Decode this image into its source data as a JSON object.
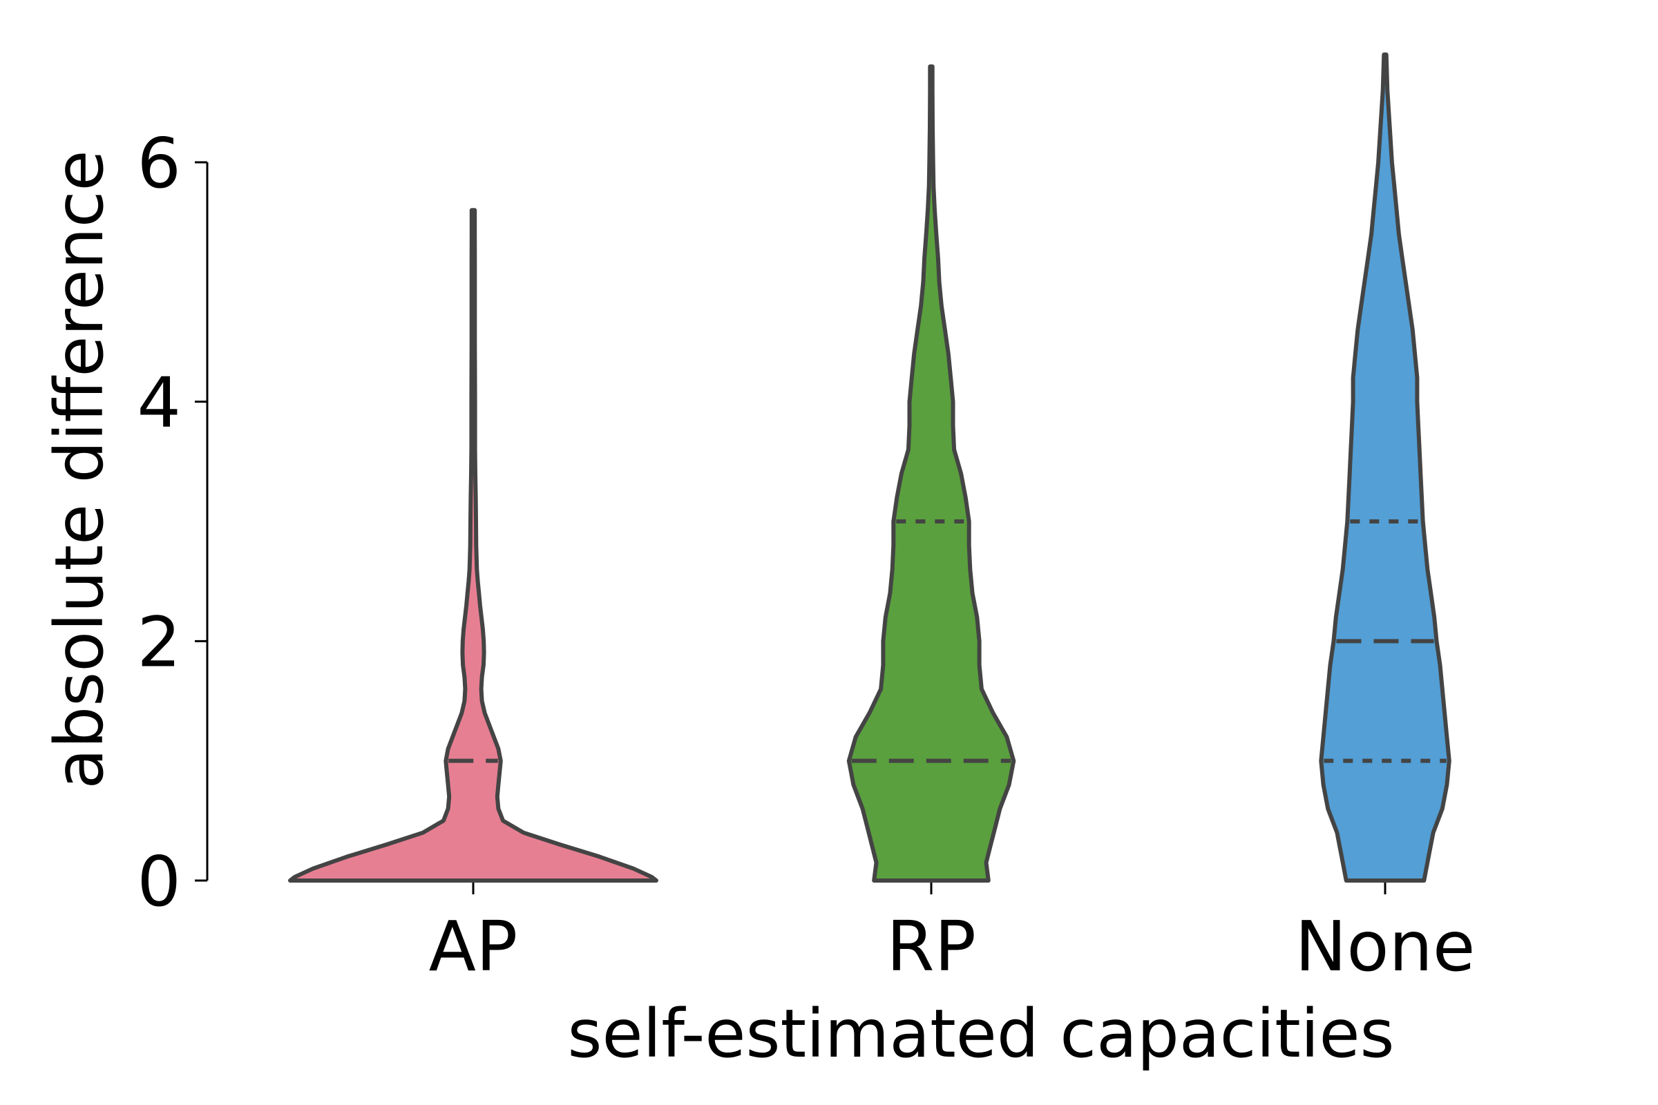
{
  "chart_data": {
    "type": "violin",
    "xlabel": "self-estimated capacities",
    "ylabel": "absolute difference",
    "ylim": [
      0,
      6.9
    ],
    "yticks": [
      0,
      2,
      4,
      6
    ],
    "categories": [
      "AP",
      "RP",
      "None"
    ],
    "grid": false,
    "legend": "none",
    "outline_color": "#444444",
    "series": [
      {
        "category": "AP",
        "color": "#e77f92",
        "min": 0,
        "max": 5.6,
        "quartiles": [
          0,
          1,
          0
        ],
        "profile": [
          [
            0,
            0.8
          ],
          [
            0.03,
            0.78
          ],
          [
            0.1,
            0.7
          ],
          [
            0.2,
            0.55
          ],
          [
            0.3,
            0.38
          ],
          [
            0.4,
            0.22
          ],
          [
            0.5,
            0.13
          ],
          [
            0.6,
            0.11
          ],
          [
            0.7,
            0.105
          ],
          [
            0.8,
            0.11
          ],
          [
            0.9,
            0.115
          ],
          [
            1.0,
            0.12
          ],
          [
            1.1,
            0.11
          ],
          [
            1.2,
            0.09
          ],
          [
            1.3,
            0.07
          ],
          [
            1.4,
            0.05
          ],
          [
            1.5,
            0.038
          ],
          [
            1.6,
            0.035
          ],
          [
            1.7,
            0.038
          ],
          [
            1.8,
            0.045
          ],
          [
            1.9,
            0.047
          ],
          [
            2.0,
            0.046
          ],
          [
            2.1,
            0.042
          ],
          [
            2.2,
            0.036
          ],
          [
            2.3,
            0.03
          ],
          [
            2.4,
            0.025
          ],
          [
            2.5,
            0.02
          ],
          [
            2.6,
            0.016
          ],
          [
            2.8,
            0.013
          ],
          [
            3.0,
            0.012
          ],
          [
            3.2,
            0.011
          ],
          [
            3.4,
            0.009
          ],
          [
            3.6,
            0.008
          ],
          [
            3.8,
            0.0078
          ],
          [
            4.0,
            0.0078
          ],
          [
            4.2,
            0.0076
          ],
          [
            4.5,
            0.007
          ],
          [
            4.8,
            0.0068
          ],
          [
            5.0,
            0.007
          ],
          [
            5.2,
            0.0068
          ],
          [
            5.4,
            0.0066
          ],
          [
            5.6,
            0.0066
          ]
        ]
      },
      {
        "category": "RP",
        "color": "#5aa03e",
        "min": 0,
        "max": 6.8,
        "quartiles": [
          0,
          1,
          3
        ],
        "profile": [
          [
            0,
            0.25
          ],
          [
            0.15,
            0.24
          ],
          [
            0.3,
            0.26
          ],
          [
            0.45,
            0.28
          ],
          [
            0.6,
            0.3
          ],
          [
            0.8,
            0.34
          ],
          [
            1.0,
            0.36
          ],
          [
            1.2,
            0.33
          ],
          [
            1.4,
            0.27
          ],
          [
            1.6,
            0.22
          ],
          [
            1.8,
            0.21
          ],
          [
            2.0,
            0.21
          ],
          [
            2.2,
            0.2
          ],
          [
            2.4,
            0.18
          ],
          [
            2.6,
            0.17
          ],
          [
            2.8,
            0.165
          ],
          [
            3.0,
            0.165
          ],
          [
            3.2,
            0.15
          ],
          [
            3.4,
            0.13
          ],
          [
            3.6,
            0.1
          ],
          [
            3.8,
            0.095
          ],
          [
            4.0,
            0.095
          ],
          [
            4.2,
            0.085
          ],
          [
            4.4,
            0.075
          ],
          [
            4.6,
            0.06
          ],
          [
            4.8,
            0.045
          ],
          [
            5.0,
            0.035
          ],
          [
            5.2,
            0.03
          ],
          [
            5.4,
            0.022
          ],
          [
            5.6,
            0.015
          ],
          [
            5.8,
            0.01
          ],
          [
            6.0,
            0.008
          ],
          [
            6.3,
            0.006
          ],
          [
            6.6,
            0.005
          ],
          [
            6.8,
            0.005
          ]
        ]
      },
      {
        "category": "None",
        "color": "#539fd6",
        "min": 0,
        "max": 6.9,
        "quartiles": [
          1,
          2,
          3
        ],
        "profile": [
          [
            0,
            0.17
          ],
          [
            0.2,
            0.19
          ],
          [
            0.4,
            0.21
          ],
          [
            0.6,
            0.25
          ],
          [
            0.8,
            0.27
          ],
          [
            1.0,
            0.28
          ],
          [
            1.2,
            0.27
          ],
          [
            1.4,
            0.26
          ],
          [
            1.6,
            0.25
          ],
          [
            1.8,
            0.24
          ],
          [
            2.0,
            0.225
          ],
          [
            2.2,
            0.215
          ],
          [
            2.4,
            0.2
          ],
          [
            2.6,
            0.185
          ],
          [
            2.8,
            0.175
          ],
          [
            3.0,
            0.165
          ],
          [
            3.2,
            0.16
          ],
          [
            3.4,
            0.155
          ],
          [
            3.6,
            0.15
          ],
          [
            3.8,
            0.145
          ],
          [
            4.0,
            0.14
          ],
          [
            4.2,
            0.14
          ],
          [
            4.4,
            0.13
          ],
          [
            4.6,
            0.12
          ],
          [
            4.8,
            0.105
          ],
          [
            5.0,
            0.09
          ],
          [
            5.2,
            0.075
          ],
          [
            5.4,
            0.06
          ],
          [
            5.6,
            0.05
          ],
          [
            5.8,
            0.04
          ],
          [
            6.0,
            0.03
          ],
          [
            6.3,
            0.02
          ],
          [
            6.6,
            0.01
          ],
          [
            6.9,
            0.005
          ]
        ]
      }
    ]
  }
}
